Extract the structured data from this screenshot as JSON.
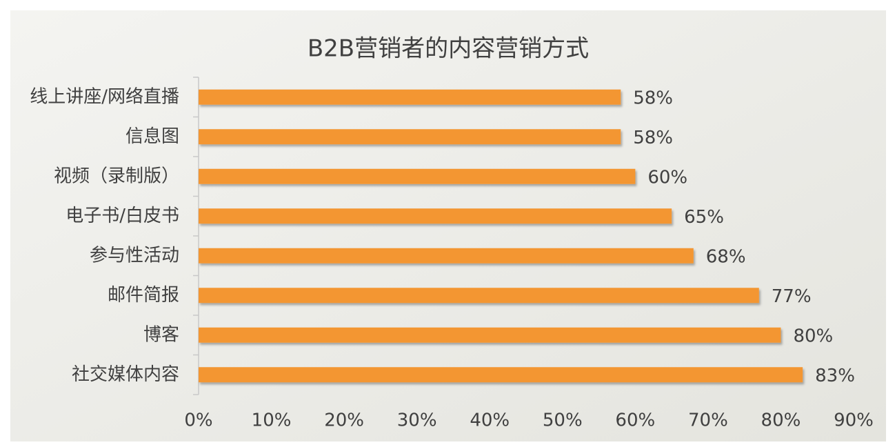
{
  "chart_data": {
    "type": "hbar",
    "title": "B2B营销者的内容营销方式",
    "categories": [
      "线上讲座/网络直播",
      "信息图",
      "视频（录制版）",
      "电子书/白皮书",
      "参与性活动",
      "邮件简报",
      "博客",
      "社交媒体内容"
    ],
    "values": [
      58,
      58,
      60,
      65,
      68,
      77,
      80,
      83
    ],
    "value_labels": [
      "58%",
      "58%",
      "60%",
      "65%",
      "68%",
      "77%",
      "80%",
      "83%"
    ],
    "color": "#f39631",
    "xlim": [
      0,
      90
    ],
    "xticks": [
      {
        "value": 0,
        "label": "0%"
      },
      {
        "value": 10,
        "label": "10%"
      },
      {
        "value": 20,
        "label": "20%"
      },
      {
        "value": 30,
        "label": "30%"
      },
      {
        "value": 40,
        "label": "40%"
      },
      {
        "value": 50,
        "label": "50%"
      },
      {
        "value": 60,
        "label": "60%"
      },
      {
        "value": 70,
        "label": "70%"
      },
      {
        "value": 80,
        "label": "80%"
      },
      {
        "value": 90,
        "label": "90%"
      }
    ]
  }
}
